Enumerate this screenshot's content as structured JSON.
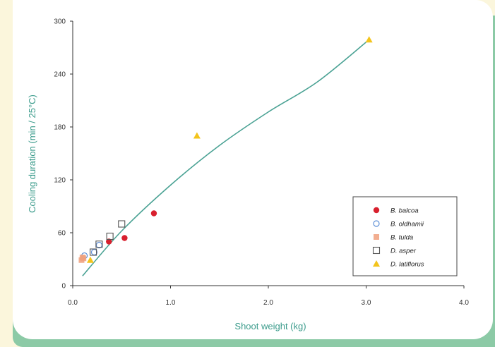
{
  "chart_data": {
    "type": "scatter",
    "title": "",
    "xlabel": "Shoot weight (kg)",
    "ylabel": "Cooling duration (min / 25°C)",
    "xlim": [
      0,
      4.0
    ],
    "ylim": [
      0,
      300
    ],
    "x_ticks": [
      "0.0",
      "1.0",
      "2.0",
      "3.0",
      "4.0"
    ],
    "y_ticks": [
      "0",
      "60",
      "120",
      "180",
      "240",
      "300"
    ],
    "grid": false,
    "legend_position": "lower-right",
    "colors": {
      "axis_title": "#3c9c8c",
      "fit_line": "#4aa294",
      "b_balcoa": "#d8202e",
      "b_oldhamii": "#5c8ed6",
      "b_tulda": "#f0a07c",
      "d_asper": "#555555",
      "d_latiflorus": "#f3c41c"
    },
    "series": [
      {
        "name": "B. balcoa",
        "marker": "filled-circle",
        "points": [
          [
            0.37,
            50
          ],
          [
            0.53,
            54
          ],
          [
            0.83,
            82
          ]
        ]
      },
      {
        "name": "B. oldhamii",
        "marker": "open-circle",
        "points": [
          [
            0.12,
            34
          ],
          [
            0.22,
            38
          ],
          [
            0.27,
            46
          ]
        ]
      },
      {
        "name": "B. tulda",
        "marker": "filled-square",
        "points": [
          [
            0.09,
            29
          ],
          [
            0.1,
            32
          ],
          [
            0.11,
            31
          ]
        ]
      },
      {
        "name": "D. asper",
        "marker": "open-square",
        "points": [
          [
            0.21,
            38
          ],
          [
            0.27,
            47
          ],
          [
            0.38,
            56
          ],
          [
            0.5,
            70
          ]
        ]
      },
      {
        "name": "D. latiflorus",
        "marker": "filled-triangle",
        "points": [
          [
            0.18,
            29
          ],
          [
            1.27,
            170
          ],
          [
            3.03,
            279
          ]
        ]
      }
    ],
    "fit_curve": {
      "kind": "nonlinear trend",
      "points": [
        [
          0.1,
          11
        ],
        [
          0.5,
          62
        ],
        [
          1.0,
          114
        ],
        [
          1.5,
          159
        ],
        [
          2.0,
          197
        ],
        [
          2.5,
          231
        ],
        [
          3.03,
          279
        ]
      ]
    }
  }
}
